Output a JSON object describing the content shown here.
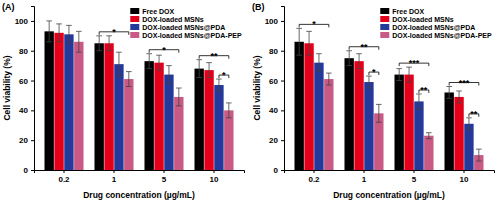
{
  "chart_data": [
    {
      "type": "bar",
      "title": "(A)",
      "x_label": "Drug concentration (µg/mL)",
      "y_label": "Cell viability (%)",
      "categories": [
        "0.2",
        "1",
        "5",
        "10"
      ],
      "series": [
        {
          "name": "Free DOX",
          "color": "#000000",
          "values": [
            93,
            85,
            73,
            68
          ],
          "errors": [
            7,
            5,
            5,
            6
          ]
        },
        {
          "name": "DOX-loaded MSNs",
          "color": "#e3001b",
          "values": [
            92,
            85,
            72,
            67
          ],
          "errors": [
            6,
            5,
            5,
            5
          ]
        },
        {
          "name": "DOX-loaded MSNs@PDA",
          "color": "#25399a",
          "values": [
            91,
            71,
            64,
            57
          ],
          "errors": [
            6,
            8,
            6,
            4
          ]
        },
        {
          "name": "DOX-loaded MSNs@PDA-PEP",
          "color": "#c85a85",
          "values": [
            86,
            61,
            49,
            40
          ],
          "errors": [
            7,
            5,
            6,
            5
          ]
        }
      ],
      "ylim": [
        0,
        110
      ],
      "yticks": [
        0,
        20,
        40,
        60,
        80,
        100
      ],
      "grid": false,
      "legend": "upper right",
      "annotations": [
        {
          "text": "*",
          "category": 1,
          "from": 0,
          "to": 3
        },
        {
          "text": "*",
          "category": 2,
          "from": 0,
          "to": 3
        },
        {
          "text": "*",
          "category": 3,
          "from": 2,
          "to": 3
        },
        {
          "text": "**",
          "category": 3,
          "from": 0,
          "to": 3
        }
      ]
    },
    {
      "type": "bar",
      "title": "(B)",
      "x_label": "Drug concentration (µg/mL)",
      "y_label": "Cell viability (%)",
      "categories": [
        "0.2",
        "1",
        "5",
        "10"
      ],
      "series": [
        {
          "name": "Free DOX",
          "color": "#000000",
          "values": [
            86,
            75,
            64,
            52
          ],
          "errors": [
            9,
            5,
            4,
            4
          ]
        },
        {
          "name": "DOX-loaded MSNs",
          "color": "#e3001b",
          "values": [
            85,
            73,
            64,
            49
          ],
          "errors": [
            8,
            5,
            5,
            4
          ]
        },
        {
          "name": "DOX-loaded MSNs@PDA",
          "color": "#25399a",
          "values": [
            72,
            59,
            46,
            31
          ],
          "errors": [
            6,
            4,
            5,
            4
          ]
        },
        {
          "name": "DOX-loaded MSNs@PDA-PEP",
          "color": "#c85a85",
          "values": [
            61,
            38,
            23,
            10
          ],
          "errors": [
            4,
            6,
            2,
            4
          ]
        }
      ],
      "ylim": [
        0,
        110
      ],
      "yticks": [
        0,
        20,
        40,
        60,
        80,
        100
      ],
      "grid": false,
      "legend": "upper right",
      "annotations": [
        {
          "text": "*",
          "category": 0,
          "from": 0,
          "to": 3
        },
        {
          "text": "*",
          "category": 1,
          "from": 2,
          "to": 3
        },
        {
          "text": "**",
          "category": 1,
          "from": 0,
          "to": 3
        },
        {
          "text": "**",
          "category": 2,
          "from": 2,
          "to": 3
        },
        {
          "text": "***",
          "category": 2,
          "from": 0,
          "to": 3
        },
        {
          "text": "**",
          "category": 3,
          "from": 2,
          "to": 3
        },
        {
          "text": "***",
          "category": 3,
          "from": 0,
          "to": 3
        }
      ]
    }
  ]
}
